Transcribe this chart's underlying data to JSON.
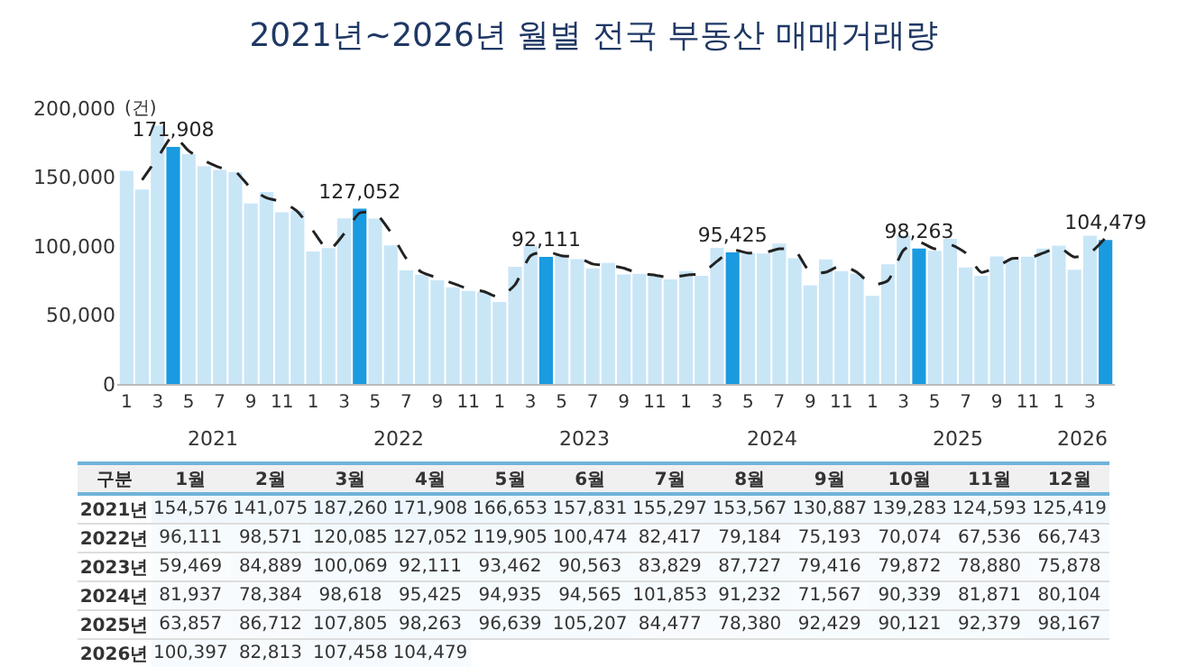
{
  "chart_data": [
    {
      "type": "bar",
      "title": "2021년~2026년 월별 전국 부동산 매매거래량",
      "ylabel": "(건)",
      "categories": [
        "1",
        null,
        "3",
        null,
        "5",
        null,
        "7",
        null,
        "9",
        null,
        "11",
        null,
        "1",
        null,
        "3",
        null,
        "5",
        null,
        "7",
        null,
        "9",
        null,
        "11",
        null,
        "1",
        null,
        "3",
        null,
        "5",
        null,
        "7",
        null,
        "9",
        null,
        "11",
        null,
        "1",
        null,
        "3",
        null,
        "5",
        null,
        "7",
        null,
        "9",
        null,
        "11",
        null,
        "1",
        null,
        "3",
        null,
        "5",
        null,
        "7",
        null,
        "9",
        null,
        "11",
        null,
        "1",
        null,
        "3",
        null
      ],
      "annotations": [
        "2021",
        "2022",
        "2023",
        "2024",
        "2025",
        "2026"
      ],
      "ylim": [
        0,
        200000
      ],
      "yticks": [
        {
          "value": 0,
          "label": "0"
        },
        {
          "value": 50000,
          "label": "50,000"
        },
        {
          "value": 100000,
          "label": "100,000"
        },
        {
          "value": 150000,
          "label": "150,000"
        },
        {
          "value": 200000,
          "label": "200,000"
        }
      ],
      "series": [
        {
          "values": [
            154576,
            141075,
            187260,
            171908,
            166653,
            157831,
            155297,
            153567,
            130887,
            139283,
            124593,
            125419,
            96111,
            98571,
            120085,
            127052,
            119905,
            100474,
            82417,
            79184,
            75193,
            70074,
            67536,
            66743,
            59469,
            84889,
            100069,
            92111,
            93462,
            90563,
            83829,
            87727,
            79416,
            79872,
            78880,
            75878,
            81937,
            78384,
            98618,
            95425,
            94935,
            94565,
            101853,
            91232,
            71567,
            90339,
            81871,
            80104,
            63857,
            86712,
            107805,
            98263,
            96639,
            105207,
            84477,
            78380,
            92429,
            90121,
            92379,
            98167,
            100397,
            82813,
            107458,
            104479
          ],
          "colors": [
            "#c9e6f7",
            "#c9e6f7",
            "#c9e6f7",
            "#1a9ae0",
            "#c9e6f7",
            "#c9e6f7",
            "#c9e6f7",
            "#c9e6f7",
            "#c9e6f7",
            "#c9e6f7",
            "#c9e6f7",
            "#c9e6f7",
            "#c9e6f7",
            "#c9e6f7",
            "#c9e6f7",
            "#1a9ae0",
            "#c9e6f7",
            "#c9e6f7",
            "#c9e6f7",
            "#c9e6f7",
            "#c9e6f7",
            "#c9e6f7",
            "#c9e6f7",
            "#c9e6f7",
            "#c9e6f7",
            "#c9e6f7",
            "#c9e6f7",
            "#1a9ae0",
            "#c9e6f7",
            "#c9e6f7",
            "#c9e6f7",
            "#c9e6f7",
            "#c9e6f7",
            "#c9e6f7",
            "#c9e6f7",
            "#c9e6f7",
            "#c9e6f7",
            "#c9e6f7",
            "#c9e6f7",
            "#1a9ae0",
            "#c9e6f7",
            "#c9e6f7",
            "#c9e6f7",
            "#c9e6f7",
            "#c9e6f7",
            "#c9e6f7",
            "#c9e6f7",
            "#c9e6f7",
            "#c9e6f7",
            "#c9e6f7",
            "#c9e6f7",
            "#1a9ae0",
            "#c9e6f7",
            "#c9e6f7",
            "#c9e6f7",
            "#c9e6f7",
            "#c9e6f7",
            "#c9e6f7",
            "#c9e6f7",
            "#c9e6f7",
            "#c9e6f7",
            "#c9e6f7",
            "#c9e6f7",
            "#1a9ae0"
          ],
          "value_labels": [
            null,
            null,
            null,
            "171,908",
            null,
            null,
            null,
            null,
            null,
            null,
            null,
            null,
            null,
            null,
            null,
            "127,052",
            null,
            null,
            null,
            null,
            null,
            null,
            null,
            null,
            null,
            null,
            null,
            "92,111",
            null,
            null,
            null,
            null,
            null,
            null,
            null,
            null,
            null,
            null,
            null,
            "95,425",
            null,
            null,
            null,
            null,
            null,
            null,
            null,
            null,
            null,
            null,
            null,
            "98,263",
            null,
            null,
            null,
            null,
            null,
            null,
            null,
            null,
            null,
            null,
            null,
            "104,479"
          ]
        },
        {
          "type": "line",
          "color": "#222222",
          "line_style": "dashed",
          "values": [
            null,
            148000,
            164000,
            180000,
            169000,
            162000,
            157000,
            154000,
            142000,
            135000,
            132000,
            125000,
            111000,
            97000,
            109000,
            124000,
            124000,
            110000,
            91000,
            81000,
            77000,
            73000,
            69000,
            67000,
            63000,
            72000,
            93000,
            96000,
            93000,
            92000,
            87000,
            86000,
            84000,
            80000,
            79000,
            77000,
            79000,
            80000,
            89000,
            97000,
            95000,
            95000,
            98000,
            97000,
            81000,
            81000,
            86000,
            81000,
            72000,
            75000,
            97000,
            103000,
            98000,
            101000,
            95000,
            81000,
            85000,
            91000,
            91000,
            95000,
            99000,
            92000,
            95000,
            106000
          ]
        }
      ]
    },
    {
      "type": "heatmap",
      "annotations": [
        "구분"
      ],
      "categories": [
        "1월",
        "2월",
        "3월",
        "4월",
        "5월",
        "6월",
        "7월",
        "8월",
        "9월",
        "10월",
        "11월",
        "12월"
      ],
      "y_categories": [
        "2021년",
        "2022년",
        "2023년",
        "2024년",
        "2025년",
        "2026년"
      ],
      "cells": [
        [
          154576,
          141075,
          187260,
          171908,
          166653,
          157831,
          155297,
          153567,
          130887,
          139283,
          124593,
          125419
        ],
        [
          96111,
          98571,
          120085,
          127052,
          119905,
          100474,
          82417,
          79184,
          75193,
          70074,
          67536,
          66743
        ],
        [
          59469,
          84889,
          100069,
          92111,
          93462,
          90563,
          83829,
          87727,
          79416,
          79872,
          78880,
          75878
        ],
        [
          81937,
          78384,
          98618,
          95425,
          94935,
          94565,
          101853,
          91232,
          71567,
          90339,
          81871,
          80104
        ],
        [
          63857,
          86712,
          107805,
          98263,
          96639,
          105207,
          84477,
          78380,
          92429,
          90121,
          92379,
          98167
        ],
        [
          100397,
          82813,
          107458,
          104479,
          null,
          null,
          null,
          null,
          null,
          null,
          null,
          null
        ]
      ],
      "cell_labels": [
        [
          "154,576",
          "141,075",
          "187,260",
          "171,908",
          "166,653",
          "157,831",
          "155,297",
          "153,567",
          "130,887",
          "139,283",
          "124,593",
          "125,419"
        ],
        [
          "96,111",
          "98,571",
          "120,085",
          "127,052",
          "119,905",
          "100,474",
          "82,417",
          "79,184",
          "75,193",
          "70,074",
          "67,536",
          "66,743"
        ],
        [
          "59,469",
          "84,889",
          "100,069",
          "92,111",
          "93,462",
          "90,563",
          "83,829",
          "87,727",
          "79,416",
          "79,872",
          "78,880",
          "75,878"
        ],
        [
          "81,937",
          "78,384",
          "98,618",
          "95,425",
          "94,935",
          "94,565",
          "101,853",
          "91,232",
          "71,567",
          "90,339",
          "81,871",
          "80,104"
        ],
        [
          "63,857",
          "86,712",
          "107,805",
          "98,263",
          "96,639",
          "105,207",
          "84,477",
          "78,380",
          "92,429",
          "90,121",
          "92,379",
          "98,167"
        ],
        [
          "100,397",
          "82,813",
          "107,458",
          "104,479",
          null,
          null,
          null,
          null,
          null,
          null,
          null,
          null
        ]
      ]
    }
  ]
}
